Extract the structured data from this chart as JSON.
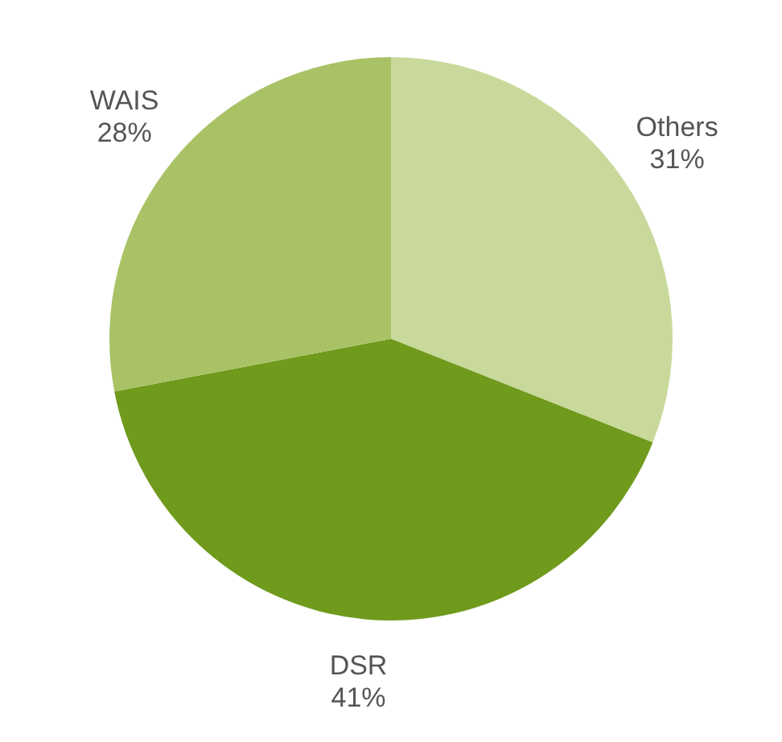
{
  "chart_data": {
    "type": "pie",
    "categories": [
      "Others",
      "DSR",
      "WAIS"
    ],
    "values": [
      31,
      41,
      28
    ],
    "colors": [
      "#c9d99b",
      "#6f9a1c",
      "#a9c265"
    ],
    "value_labels": [
      "31%",
      "41%",
      "28%"
    ],
    "legend": false
  }
}
